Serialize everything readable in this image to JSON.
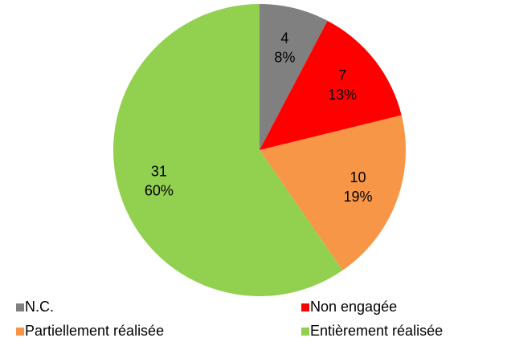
{
  "chart_data": {
    "type": "pie",
    "categories": [
      "N.C.",
      "Non engagée",
      "Partiellement réalisée",
      "Entièrement réalisée"
    ],
    "values": [
      4,
      7,
      10,
      31
    ],
    "percent_labels": [
      "8%",
      "13%",
      "19%",
      "60%"
    ],
    "colors": [
      "#808080",
      "#ff0000",
      "#f79646",
      "#92d050"
    ],
    "legend": "bottom"
  }
}
